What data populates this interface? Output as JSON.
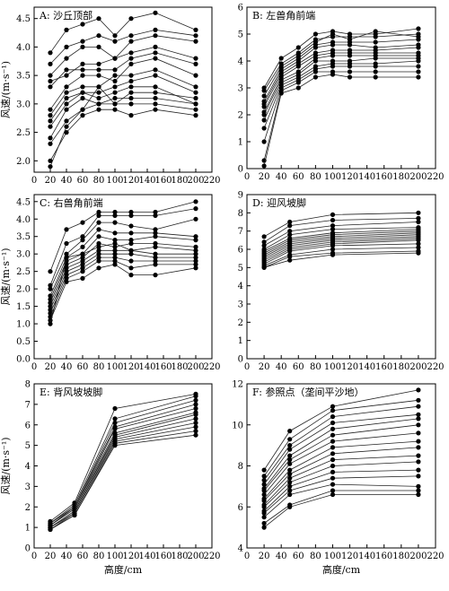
{
  "figure": {
    "shared_xlabel": "高度/cm",
    "shared_ylabel": "风速/(m·s⁻¹)"
  },
  "chart_data": [
    {
      "type": "line",
      "panel_label": "A: 沙丘顶部",
      "x": [
        20,
        40,
        60,
        80,
        100,
        120,
        150,
        200
      ],
      "xlim": [
        0,
        220
      ],
      "xticks": [
        0,
        20,
        40,
        60,
        80,
        100,
        120,
        140,
        160,
        180,
        200,
        220
      ],
      "ylim": [
        1.8,
        4.7
      ],
      "yticks": [
        2.0,
        2.5,
        3.0,
        3.5,
        4.0,
        4.5
      ],
      "ylabel": "风速/(m·s⁻¹)",
      "xlabel": "",
      "series": [
        {
          "values": [
            3.9,
            4.3,
            4.4,
            4.5,
            4.2,
            4.5,
            4.6,
            4.3
          ]
        },
        {
          "values": [
            3.7,
            4.0,
            4.1,
            4.2,
            4.1,
            4.2,
            4.3,
            4.2
          ]
        },
        {
          "values": [
            3.5,
            3.8,
            4.0,
            4.0,
            3.8,
            4.1,
            4.2,
            4.1
          ]
        },
        {
          "values": [
            3.4,
            3.5,
            3.7,
            3.7,
            3.8,
            3.9,
            4.0,
            3.8
          ]
        },
        {
          "values": [
            3.3,
            3.6,
            3.6,
            3.6,
            3.6,
            3.8,
            3.9,
            3.7
          ]
        },
        {
          "values": [
            2.9,
            3.3,
            3.5,
            3.5,
            3.4,
            3.7,
            3.8,
            3.5
          ]
        },
        {
          "values": [
            2.8,
            3.2,
            3.3,
            3.3,
            3.5,
            3.5,
            3.6,
            3.3
          ]
        },
        {
          "values": [
            2.7,
            3.1,
            3.2,
            3.2,
            3.3,
            3.4,
            3.5,
            3.2
          ]
        },
        {
          "values": [
            2.6,
            3.0,
            3.2,
            3.1,
            3.2,
            3.3,
            3.3,
            3.0
          ]
        },
        {
          "values": [
            2.4,
            2.9,
            3.1,
            3.0,
            3.1,
            3.1,
            3.1,
            3.0
          ]
        },
        {
          "values": [
            2.3,
            2.7,
            2.9,
            3.0,
            3.0,
            3.0,
            3.0,
            2.9
          ]
        },
        {
          "values": [
            2.0,
            2.5,
            2.8,
            2.9,
            2.9,
            2.8,
            2.9,
            2.8
          ]
        },
        {
          "values": [
            1.9,
            2.6,
            2.9,
            3.3,
            3.0,
            3.2,
            3.2,
            3.1
          ]
        }
      ]
    },
    {
      "type": "line",
      "panel_label": "B: 左兽角前端",
      "x": [
        20,
        40,
        60,
        80,
        100,
        120,
        150,
        200
      ],
      "xlim": [
        0,
        220
      ],
      "xticks": [
        0,
        20,
        40,
        60,
        80,
        100,
        120,
        140,
        160,
        180,
        200,
        220
      ],
      "ylim": [
        0,
        6
      ],
      "yticks": [
        0,
        1,
        2,
        3,
        4,
        5,
        6
      ],
      "ylabel": "",
      "xlabel": "",
      "series": [
        {
          "values": [
            3.0,
            4.1,
            4.5,
            5.0,
            5.1,
            5.0,
            5.0,
            5.2
          ]
        },
        {
          "values": [
            2.9,
            3.9,
            4.3,
            4.8,
            4.9,
            4.9,
            4.9,
            5.0
          ]
        },
        {
          "values": [
            2.7,
            3.8,
            4.2,
            4.7,
            5.0,
            4.8,
            5.1,
            4.9
          ]
        },
        {
          "values": [
            2.5,
            3.7,
            4.1,
            4.6,
            4.7,
            4.7,
            4.7,
            4.8
          ]
        },
        {
          "values": [
            2.4,
            3.6,
            4.0,
            4.5,
            4.6,
            4.6,
            4.5,
            4.6
          ]
        },
        {
          "values": [
            2.3,
            3.5,
            3.9,
            4.3,
            4.4,
            4.4,
            4.4,
            4.5
          ]
        },
        {
          "values": [
            2.1,
            3.4,
            3.8,
            4.2,
            4.3,
            4.3,
            4.3,
            4.3
          ]
        },
        {
          "values": [
            2.0,
            3.3,
            3.6,
            4.1,
            4.2,
            4.2,
            4.2,
            4.2
          ]
        },
        {
          "values": [
            1.8,
            3.2,
            3.5,
            4.0,
            4.0,
            4.0,
            4.1,
            4.1
          ]
        },
        {
          "values": [
            1.5,
            3.1,
            3.4,
            3.8,
            3.9,
            3.9,
            3.9,
            4.0
          ]
        },
        {
          "values": [
            1.0,
            3.0,
            3.3,
            3.7,
            3.8,
            3.8,
            3.8,
            3.8
          ]
        },
        {
          "values": [
            0.3,
            2.9,
            3.2,
            3.6,
            3.6,
            3.6,
            3.6,
            3.6
          ]
        },
        {
          "values": [
            0.1,
            2.8,
            3.0,
            3.4,
            3.5,
            3.4,
            3.4,
            3.4
          ]
        }
      ]
    },
    {
      "type": "line",
      "panel_label": "C: 右兽角前端",
      "x": [
        20,
        40,
        60,
        80,
        100,
        120,
        150,
        200
      ],
      "xlim": [
        0,
        220
      ],
      "xticks": [
        0,
        20,
        40,
        60,
        80,
        100,
        120,
        140,
        160,
        180,
        200,
        220
      ],
      "ylim": [
        0,
        4.7
      ],
      "yticks": [
        0.0,
        0.5,
        1.0,
        1.5,
        2.0,
        2.5,
        3.0,
        3.5,
        4.0,
        4.5
      ],
      "ylabel": "风速/(m·s⁻¹)",
      "xlabel": "",
      "series": [
        {
          "values": [
            2.5,
            3.7,
            3.9,
            4.2,
            4.2,
            4.2,
            4.2,
            4.5
          ]
        },
        {
          "values": [
            2.1,
            3.3,
            3.5,
            4.1,
            4.1,
            4.1,
            4.1,
            4.3
          ]
        },
        {
          "values": [
            2.0,
            3.0,
            3.4,
            3.9,
            3.9,
            3.8,
            3.7,
            4.0
          ]
        },
        {
          "values": [
            1.8,
            2.9,
            3.2,
            3.7,
            3.6,
            3.6,
            3.6,
            3.5
          ]
        },
        {
          "values": [
            1.7,
            2.8,
            3.0,
            3.5,
            3.4,
            3.4,
            3.5,
            3.4
          ]
        },
        {
          "values": [
            1.6,
            2.7,
            2.9,
            3.3,
            3.2,
            3.3,
            3.3,
            3.2
          ]
        },
        {
          "values": [
            1.5,
            2.6,
            2.8,
            3.1,
            3.1,
            3.1,
            3.0,
            3.0
          ]
        },
        {
          "values": [
            1.4,
            2.5,
            2.7,
            3.0,
            3.0,
            3.0,
            2.9,
            2.9
          ]
        },
        {
          "values": [
            1.3,
            2.4,
            2.6,
            2.9,
            2.9,
            2.8,
            2.8,
            2.8
          ]
        },
        {
          "values": [
            1.2,
            2.3,
            2.5,
            2.8,
            2.8,
            2.6,
            2.7,
            2.7
          ]
        },
        {
          "values": [
            1.1,
            2.2,
            2.3,
            2.6,
            2.7,
            2.4,
            2.4,
            2.6
          ]
        },
        {
          "values": [
            1.0,
            2.9,
            3.0,
            3.2,
            3.3,
            3.1,
            3.2,
            3.1
          ]
        }
      ]
    },
    {
      "type": "line",
      "panel_label": "D: 迎风坡脚",
      "x": [
        20,
        50,
        100,
        200
      ],
      "xlim": [
        0,
        220
      ],
      "xticks": [
        0,
        20,
        40,
        60,
        80,
        100,
        120,
        140,
        160,
        180,
        200,
        220
      ],
      "ylim": [
        0,
        9
      ],
      "yticks": [
        0,
        1,
        2,
        3,
        4,
        5,
        6,
        7,
        8,
        9
      ],
      "ylabel": "",
      "xlabel": "",
      "series": [
        {
          "values": [
            6.7,
            7.5,
            7.9,
            8.0
          ]
        },
        {
          "values": [
            6.4,
            7.3,
            7.6,
            7.7
          ]
        },
        {
          "values": [
            6.2,
            7.0,
            7.3,
            7.5
          ]
        },
        {
          "values": [
            6.0,
            6.8,
            7.1,
            7.2
          ]
        },
        {
          "values": [
            5.9,
            6.6,
            6.9,
            7.1
          ]
        },
        {
          "values": [
            5.8,
            6.5,
            6.8,
            7.0
          ]
        },
        {
          "values": [
            5.7,
            6.4,
            6.7,
            6.9
          ]
        },
        {
          "values": [
            5.6,
            6.3,
            6.6,
            6.8
          ]
        },
        {
          "values": [
            5.5,
            6.2,
            6.5,
            6.7
          ]
        },
        {
          "values": [
            5.4,
            6.1,
            6.4,
            6.6
          ]
        },
        {
          "values": [
            5.3,
            6.0,
            6.3,
            6.5
          ]
        },
        {
          "values": [
            5.2,
            5.9,
            6.2,
            6.3
          ]
        },
        {
          "values": [
            5.1,
            5.7,
            6.0,
            6.1
          ]
        },
        {
          "values": [
            5.0,
            5.6,
            5.8,
            5.9
          ]
        },
        {
          "values": [
            5.0,
            5.4,
            5.7,
            5.8
          ]
        }
      ]
    },
    {
      "type": "line",
      "panel_label": "E: 背风坡坡脚",
      "x": [
        20,
        50,
        100,
        200
      ],
      "xlim": [
        0,
        220
      ],
      "xticks": [
        0,
        20,
        40,
        60,
        80,
        100,
        120,
        140,
        160,
        180,
        200,
        220
      ],
      "ylim": [
        0,
        8
      ],
      "yticks": [
        0,
        1,
        2,
        3,
        4,
        5,
        6,
        7,
        8
      ],
      "ylabel": "风速/(m·s⁻¹)",
      "xlabel": "高度/cm",
      "series": [
        {
          "values": [
            1.3,
            2.2,
            6.8,
            7.5
          ]
        },
        {
          "values": [
            1.2,
            2.1,
            6.3,
            7.4
          ]
        },
        {
          "values": [
            1.2,
            2.0,
            6.1,
            7.2
          ]
        },
        {
          "values": [
            1.1,
            2.0,
            5.9,
            7.0
          ]
        },
        {
          "values": [
            1.1,
            1.9,
            5.8,
            6.8
          ]
        },
        {
          "values": [
            1.1,
            1.9,
            5.6,
            6.6
          ]
        },
        {
          "values": [
            1.0,
            1.8,
            5.5,
            6.5
          ]
        },
        {
          "values": [
            1.0,
            1.8,
            5.4,
            6.3
          ]
        },
        {
          "values": [
            1.0,
            1.7,
            5.3,
            6.1
          ]
        },
        {
          "values": [
            0.9,
            1.7,
            5.2,
            5.9
          ]
        },
        {
          "values": [
            0.9,
            1.6,
            5.1,
            5.7
          ]
        },
        {
          "values": [
            0.9,
            1.6,
            5.0,
            5.5
          ]
        }
      ]
    },
    {
      "type": "line",
      "panel_label": "F: 参照点（垄间平沙地）",
      "x": [
        20,
        50,
        100,
        200
      ],
      "xlim": [
        0,
        220
      ],
      "xticks": [
        0,
        20,
        40,
        60,
        80,
        100,
        120,
        140,
        160,
        180,
        200,
        220
      ],
      "ylim": [
        4,
        12
      ],
      "yticks": [
        4,
        6,
        8,
        10,
        12
      ],
      "ylabel": "",
      "xlabel": "高度/cm",
      "series": [
        {
          "values": [
            7.8,
            9.7,
            10.9,
            11.7
          ]
        },
        {
          "values": [
            7.5,
            9.3,
            10.7,
            11.2
          ]
        },
        {
          "values": [
            7.3,
            9.0,
            10.4,
            10.9
          ]
        },
        {
          "values": [
            7.1,
            8.8,
            10.1,
            10.5
          ]
        },
        {
          "values": [
            6.9,
            8.5,
            9.8,
            10.3
          ]
        },
        {
          "values": [
            6.8,
            8.3,
            9.5,
            10.0
          ]
        },
        {
          "values": [
            6.6,
            8.1,
            9.2,
            9.6
          ]
        },
        {
          "values": [
            6.4,
            7.8,
            8.9,
            9.2
          ]
        },
        {
          "values": [
            6.3,
            7.6,
            8.6,
            8.9
          ]
        },
        {
          "values": [
            6.1,
            7.4,
            8.3,
            8.5
          ]
        },
        {
          "values": [
            6.0,
            7.2,
            8.0,
            8.2
          ]
        },
        {
          "values": [
            5.8,
            7.0,
            7.7,
            7.8
          ]
        },
        {
          "values": [
            5.7,
            6.8,
            7.4,
            7.5
          ]
        },
        {
          "values": [
            5.5,
            6.6,
            7.1,
            7.0
          ]
        },
        {
          "values": [
            5.2,
            6.1,
            6.8,
            6.8
          ]
        },
        {
          "values": [
            5.0,
            6.0,
            6.6,
            6.6
          ]
        }
      ]
    }
  ]
}
